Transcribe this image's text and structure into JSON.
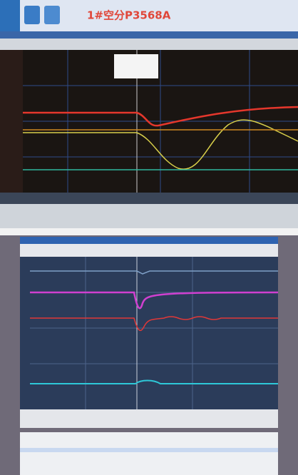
{
  "header": {
    "title": "1#空分P3568A"
  }
}
